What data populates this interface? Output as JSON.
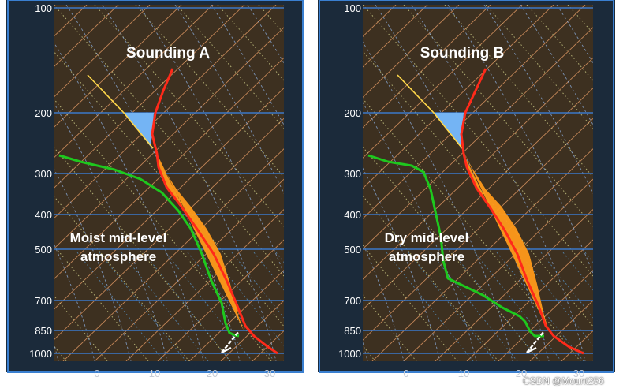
{
  "watermark": "CSDN @Mount256",
  "pressure_ticks": [
    "100",
    "200",
    "300",
    "400",
    "500",
    "700",
    "850",
    "1000"
  ],
  "temperature_ticks": [
    "0",
    "10",
    "20",
    "30"
  ],
  "panels": [
    {
      "id": "a",
      "title": "Sounding A",
      "note_lines": [
        "Moist mid-level",
        "atmosphere"
      ]
    },
    {
      "id": "b",
      "title": "Sounding B",
      "note_lines": [
        "Dry mid-level",
        "atmosphere"
      ]
    }
  ],
  "colors": {
    "plot_background": "#3d3020",
    "frame": "#1b2a3a",
    "isobar": "#3b78c9",
    "isotherm": "#d18f5e",
    "dry_adiabat": "#d0d08a",
    "moist_adiabat": "#8fb3e6",
    "mixing_ratio": "#5a9ad0",
    "temperature_profile": "#ff2a1a",
    "parcel_path": "#ffd84a",
    "cape_area": "#ff9a1a",
    "cin_area": "#74b4f4",
    "dewpoint_profile": "#1ec81e",
    "wind_barb": "#ffffff"
  }
}
